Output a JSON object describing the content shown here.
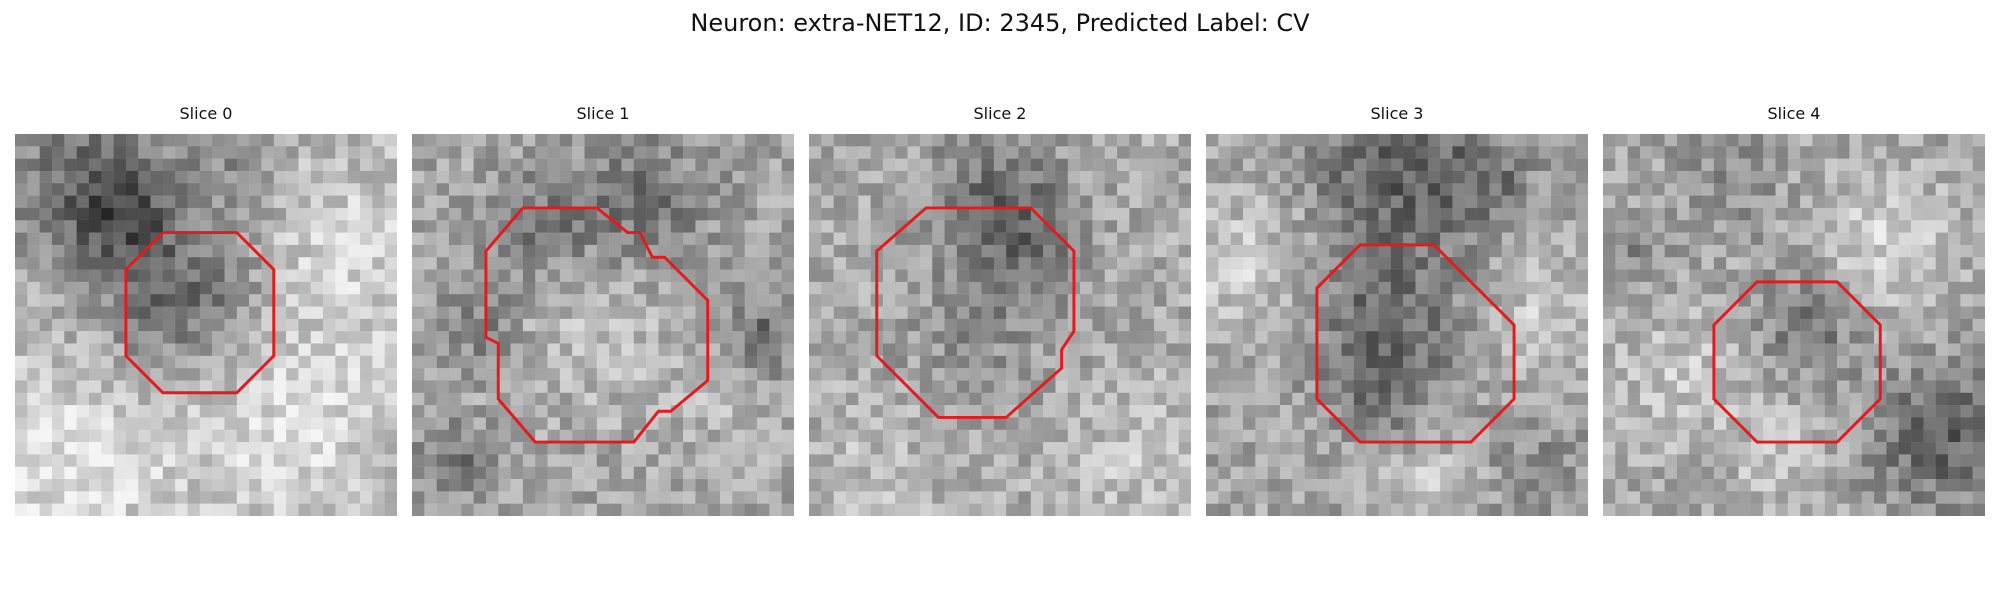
{
  "figure": {
    "title": "Neuron: extra-NET12, ID: 2345, Predicted Label: CV"
  },
  "panels": [
    {
      "label": "Slice 0",
      "outline_color": "#e41a1c"
    },
    {
      "label": "Slice 1",
      "outline_color": "#e41a1c"
    },
    {
      "label": "Slice 2",
      "outline_color": "#e41a1c"
    },
    {
      "label": "Slice 3",
      "outline_color": "#e41a1c"
    },
    {
      "label": "Slice 4",
      "outline_color": "#e41a1c"
    }
  ]
}
